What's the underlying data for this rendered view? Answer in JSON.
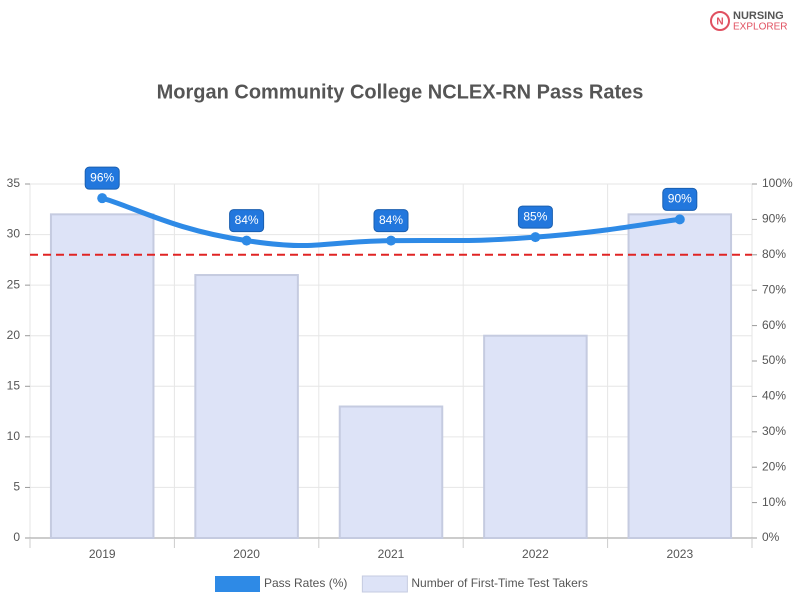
{
  "logo": {
    "line1": "NURSING",
    "line2": "EXPLORER"
  },
  "chart_data": {
    "type": "bar",
    "title": "Morgan Community College NCLEX-RN Pass Rates",
    "categories": [
      "2019",
      "2020",
      "2021",
      "2022",
      "2023"
    ],
    "series": [
      {
        "name": "Number of First-Time Test Takers",
        "type": "bar",
        "color": "#dde3f7",
        "values": [
          32,
          26,
          13,
          20,
          32
        ]
      },
      {
        "name": "Pass Rates (%)",
        "type": "line",
        "axis": "y2",
        "color": "#2e8ae6",
        "values": [
          96,
          84,
          84,
          85,
          90
        ],
        "value_labels": [
          "96%",
          "84%",
          "84%",
          "85%",
          "90%"
        ]
      }
    ],
    "threshold": 80,
    "threshold_color": "#e02424",
    "ylim": [
      0,
      35
    ],
    "yticks": [
      0,
      5,
      10,
      15,
      20,
      25,
      30,
      35
    ],
    "y2lim": [
      0,
      100
    ],
    "y2ticks": [
      {
        "value": 0,
        "label": "0%"
      },
      {
        "value": 10,
        "label": "10%"
      },
      {
        "value": 20,
        "label": "20%"
      },
      {
        "value": 30,
        "label": "30%"
      },
      {
        "value": 40,
        "label": "40%"
      },
      {
        "value": 50,
        "label": "50%"
      },
      {
        "value": 60,
        "label": "60%"
      },
      {
        "value": 70,
        "label": "70%"
      },
      {
        "value": 80,
        "label": "80%"
      },
      {
        "value": 90,
        "label": "90%"
      },
      {
        "value": 100,
        "label": "100%"
      }
    ],
    "grid": true,
    "legend": "bottom"
  }
}
